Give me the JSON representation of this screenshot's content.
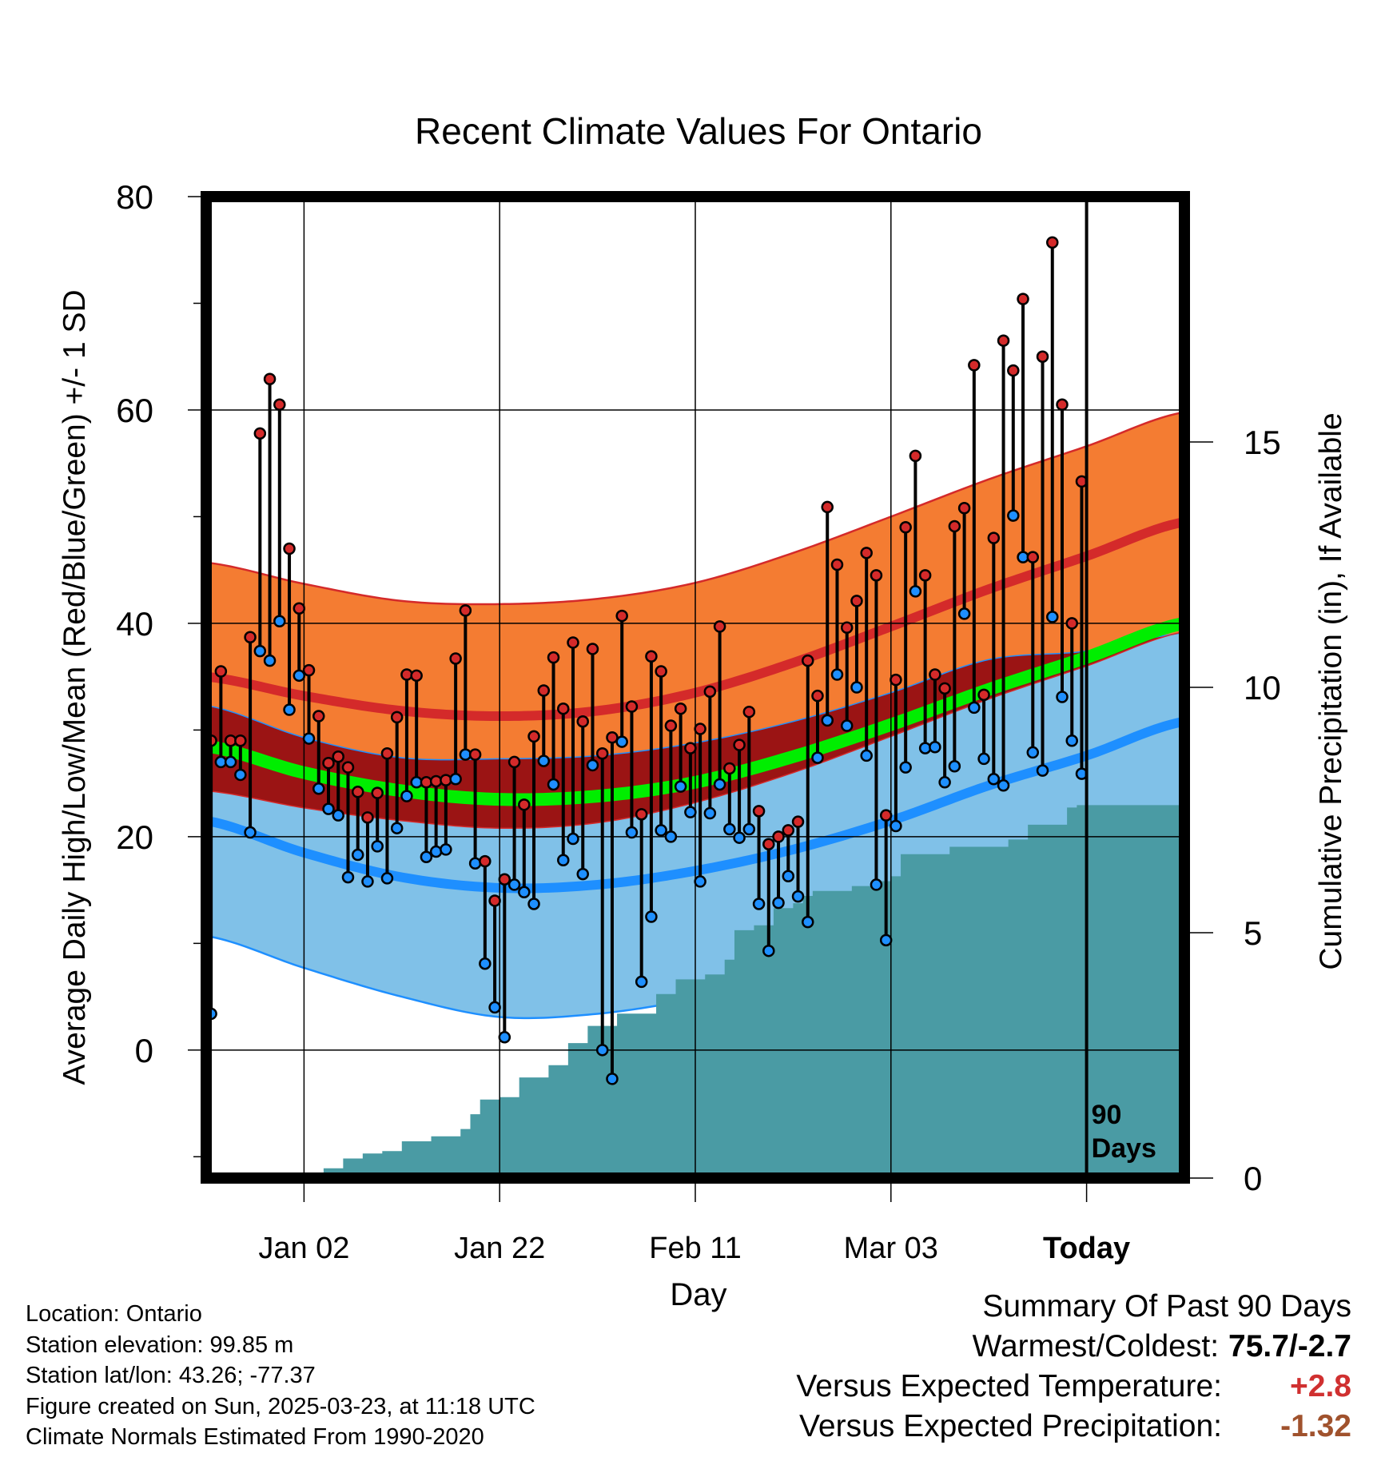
{
  "chart_data": {
    "type": "line",
    "title": "Recent Climate Values For Ontario",
    "xlabel": "Day",
    "ylabel": "Average Daily High/Low/Mean (Red/Blue/Green) +/- 1 SD",
    "y2label": "Cumulative Precipitation (in), If Available",
    "ylim": [
      -12,
      80
    ],
    "y2lim": [
      0,
      20
    ],
    "xlim": [
      -10,
      90
    ],
    "yticks": [
      "0",
      "20",
      "40",
      "60",
      "80"
    ],
    "y2ticks": [
      "0",
      "5",
      "10",
      "15"
    ],
    "xticks": [
      {
        "day": 0,
        "label": "Jan 02"
      },
      {
        "day": 20,
        "label": "Jan 22"
      },
      {
        "day": 40,
        "label": "Feb 11"
      },
      {
        "day": 60,
        "label": "Mar 03"
      },
      {
        "day": 80,
        "label": "Today"
      }
    ],
    "today_marker_label": [
      "90",
      "Days"
    ],
    "colors": {
      "high_band": "#f47c32",
      "high_line": "#d42a2a",
      "low_band": "#80c1e8",
      "low_line": "#1e8fff",
      "overlap_band": "#9b1414",
      "mean_line": "#00ee00",
      "precip": "#4a9ba4",
      "high_dot": "#d42a2a",
      "low_dot": "#1e8fff",
      "positive": "#d03030",
      "negative": "#a0522d"
    },
    "normals": {
      "x": [
        -10,
        0,
        10,
        20,
        30,
        40,
        50,
        60,
        70,
        80,
        90
      ],
      "high_mean": [
        35,
        33.2,
        31.8,
        31.3,
        31.8,
        33.5,
        36.3,
        39.7,
        43.2,
        46.3,
        49.5
      ],
      "high_sd": [
        10.7,
        10.5,
        10.3,
        10.5,
        10.5,
        10.3,
        10.3,
        10.3,
        10.3,
        10.3,
        10.3
      ],
      "low_mean": [
        21.5,
        18.5,
        16.2,
        15.2,
        15.5,
        16.8,
        18.8,
        21.5,
        24.8,
        27.6,
        30.8
      ],
      "low_sd": [
        10.8,
        10.8,
        11.2,
        12.1,
        12.1,
        12,
        12,
        12,
        11.8,
        9.8,
        8.3
      ],
      "mean": [
        28.5,
        26,
        24.3,
        23.5,
        23.8,
        25.1,
        27.5,
        30.5,
        33.8,
        36.8,
        40
      ]
    },
    "days": [
      -10,
      -9,
      -8,
      -7,
      -6,
      -5,
      -4,
      -3,
      -2,
      -1,
      0,
      1,
      2,
      3,
      4,
      5,
      6,
      7,
      8,
      9,
      10,
      11,
      12,
      13,
      14,
      15,
      16,
      17,
      18,
      19,
      20,
      21,
      22,
      23,
      24,
      25,
      26,
      27,
      28,
      29,
      30,
      31,
      32,
      33,
      34,
      35,
      36,
      37,
      38,
      39,
      40,
      41,
      42,
      43,
      44,
      45,
      46,
      47,
      48,
      49,
      50,
      51,
      52,
      53,
      54,
      55,
      56,
      57,
      58,
      59,
      60,
      61,
      62,
      63,
      64,
      65,
      66,
      67,
      68,
      69,
      70,
      71,
      72,
      73,
      74,
      75,
      76,
      77,
      78,
      79
    ],
    "daily_high": [
      29,
      35.5,
      29,
      29,
      38.7,
      57.8,
      62.9,
      60.5,
      47,
      41.4,
      35.6,
      31.3,
      26.9,
      27.5,
      26.5,
      24.2,
      21.8,
      24.1,
      27.8,
      31.2,
      35.2,
      35.1,
      25.1,
      25.2,
      25.3,
      36.7,
      41.2,
      27.7,
      17.7,
      14,
      16,
      27,
      23,
      29.4,
      33.7,
      36.8,
      32,
      38.2,
      30.8,
      37.6,
      27.8,
      29.3,
      40.7,
      32.2,
      22.1,
      36.9,
      35.5,
      30.4,
      32,
      28.3,
      30.1,
      33.6,
      39.7,
      26.4,
      28.6,
      31.7,
      22.4,
      19.3,
      20,
      20.6,
      21.4,
      36.5,
      33.2,
      50.9,
      45.5,
      39.6,
      42.1,
      46.6,
      44.5,
      22,
      34.7,
      49,
      55.7,
      44.5,
      35.2,
      33.9,
      49.1,
      50.8,
      64.2,
      33.3,
      48,
      66.5,
      63.7,
      70.4,
      46.2,
      65,
      75.7,
      60.5,
      40,
      53.3
    ],
    "daily_low": [
      3.4,
      27,
      27,
      25.8,
      20.4,
      37.4,
      36.5,
      40.2,
      31.9,
      35.1,
      29.2,
      24.5,
      22.6,
      22,
      16.2,
      18.3,
      15.8,
      19.1,
      16.1,
      20.8,
      23.8,
      25.1,
      18.1,
      18.6,
      18.8,
      25.4,
      27.7,
      17.5,
      8.1,
      4,
      1.2,
      15.5,
      14.8,
      13.7,
      27.1,
      24.9,
      17.8,
      19.8,
      16.5,
      26.7,
      0,
      -2.7,
      28.9,
      20.4,
      6.4,
      12.5,
      20.6,
      20,
      24.7,
      22.3,
      15.8,
      22.2,
      24.9,
      20.7,
      19.9,
      20.7,
      13.7,
      9.3,
      13.8,
      16.3,
      14.4,
      12,
      27.4,
      30.9,
      35.2,
      30.4,
      34,
      27.6,
      15.5,
      10.3,
      21,
      26.5,
      43,
      28.3,
      28.4,
      25.1,
      26.6,
      40.9,
      32.1,
      27.3,
      25.4,
      24.8,
      50.1,
      46.2,
      27.9,
      26.2,
      40.6,
      33.1,
      29,
      25.9
    ],
    "precip": {
      "x": [
        -10,
        -1,
        0,
        2,
        4,
        6,
        8,
        10,
        13,
        16,
        17,
        18,
        20,
        22,
        25,
        27,
        29,
        32,
        36,
        38,
        41,
        43,
        44,
        46,
        48,
        50,
        51,
        52,
        56,
        58,
        60,
        61,
        66,
        71,
        72,
        74,
        78,
        79,
        80,
        90
      ],
      "y": [
        0,
        0,
        0.05,
        0.2,
        0.4,
        0.5,
        0.55,
        0.75,
        0.85,
        1,
        1.3,
        1.6,
        1.65,
        2.05,
        2.3,
        2.75,
        3.1,
        3.35,
        3.75,
        4.05,
        4.15,
        4.45,
        5.05,
        5.15,
        5.5,
        5.6,
        5.75,
        5.85,
        5.95,
        6.05,
        6.15,
        6.6,
        6.75,
        6.75,
        6.9,
        7.2,
        7.55,
        7.6,
        7.6,
        7.6
      ]
    }
  },
  "info": {
    "location": "Location: Ontario",
    "elevation": "Station elevation: 99.85 m",
    "latlon": "Station lat/lon: 43.26; -77.37",
    "created": "Figure created on Sun, 2025-03-23, at 11:18 UTC",
    "normals": "Climate Normals Estimated From 1990-2020"
  },
  "summary": {
    "title": "Summary Of Past 90 Days",
    "warmest_label": "Warmest/Coldest:",
    "warmest_value": "75.7/-2.7",
    "temp_label": "Versus Expected Temperature:",
    "temp_value": "+2.8",
    "precip_label": "Versus Expected Precipitation:",
    "precip_value": "-1.32"
  }
}
